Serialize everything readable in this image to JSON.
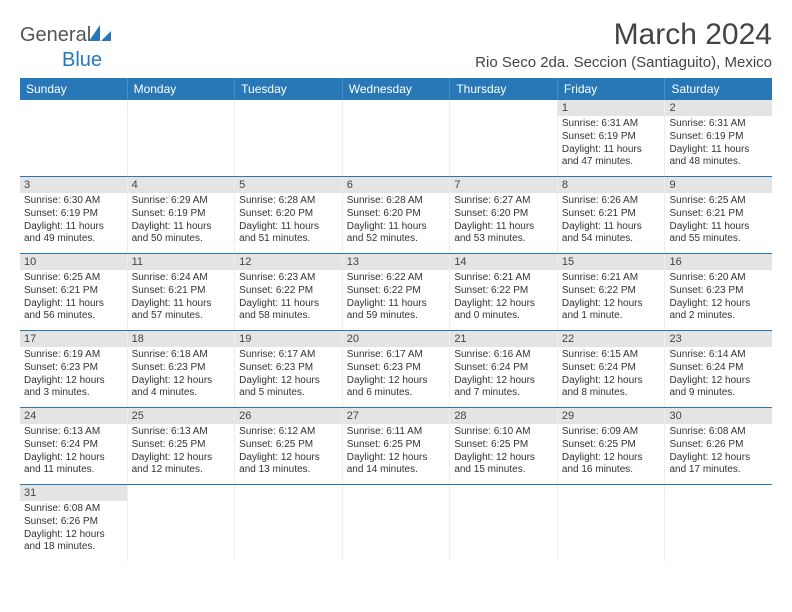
{
  "logo": {
    "textA": "General",
    "textB": "Blue"
  },
  "title": "March 2024",
  "location": "Rio Seco 2da. Seccion (Santiaguito), Mexico",
  "colors": {
    "header_bg": "#2878b8",
    "daynum_bg": "#e4e4e4"
  },
  "dayHeaders": [
    "Sunday",
    "Monday",
    "Tuesday",
    "Wednesday",
    "Thursday",
    "Friday",
    "Saturday"
  ],
  "weeks": [
    [
      {
        "n": "",
        "empty": true
      },
      {
        "n": "",
        "empty": true
      },
      {
        "n": "",
        "empty": true
      },
      {
        "n": "",
        "empty": true
      },
      {
        "n": "",
        "empty": true
      },
      {
        "n": "1",
        "sr": "Sunrise: 6:31 AM",
        "ss": "Sunset: 6:19 PM",
        "dl1": "Daylight: 11 hours",
        "dl2": "and 47 minutes."
      },
      {
        "n": "2",
        "sr": "Sunrise: 6:31 AM",
        "ss": "Sunset: 6:19 PM",
        "dl1": "Daylight: 11 hours",
        "dl2": "and 48 minutes."
      }
    ],
    [
      {
        "n": "3",
        "sr": "Sunrise: 6:30 AM",
        "ss": "Sunset: 6:19 PM",
        "dl1": "Daylight: 11 hours",
        "dl2": "and 49 minutes."
      },
      {
        "n": "4",
        "sr": "Sunrise: 6:29 AM",
        "ss": "Sunset: 6:19 PM",
        "dl1": "Daylight: 11 hours",
        "dl2": "and 50 minutes."
      },
      {
        "n": "5",
        "sr": "Sunrise: 6:28 AM",
        "ss": "Sunset: 6:20 PM",
        "dl1": "Daylight: 11 hours",
        "dl2": "and 51 minutes."
      },
      {
        "n": "6",
        "sr": "Sunrise: 6:28 AM",
        "ss": "Sunset: 6:20 PM",
        "dl1": "Daylight: 11 hours",
        "dl2": "and 52 minutes."
      },
      {
        "n": "7",
        "sr": "Sunrise: 6:27 AM",
        "ss": "Sunset: 6:20 PM",
        "dl1": "Daylight: 11 hours",
        "dl2": "and 53 minutes."
      },
      {
        "n": "8",
        "sr": "Sunrise: 6:26 AM",
        "ss": "Sunset: 6:21 PM",
        "dl1": "Daylight: 11 hours",
        "dl2": "and 54 minutes."
      },
      {
        "n": "9",
        "sr": "Sunrise: 6:25 AM",
        "ss": "Sunset: 6:21 PM",
        "dl1": "Daylight: 11 hours",
        "dl2": "and 55 minutes."
      }
    ],
    [
      {
        "n": "10",
        "sr": "Sunrise: 6:25 AM",
        "ss": "Sunset: 6:21 PM",
        "dl1": "Daylight: 11 hours",
        "dl2": "and 56 minutes."
      },
      {
        "n": "11",
        "sr": "Sunrise: 6:24 AM",
        "ss": "Sunset: 6:21 PM",
        "dl1": "Daylight: 11 hours",
        "dl2": "and 57 minutes."
      },
      {
        "n": "12",
        "sr": "Sunrise: 6:23 AM",
        "ss": "Sunset: 6:22 PM",
        "dl1": "Daylight: 11 hours",
        "dl2": "and 58 minutes."
      },
      {
        "n": "13",
        "sr": "Sunrise: 6:22 AM",
        "ss": "Sunset: 6:22 PM",
        "dl1": "Daylight: 11 hours",
        "dl2": "and 59 minutes."
      },
      {
        "n": "14",
        "sr": "Sunrise: 6:21 AM",
        "ss": "Sunset: 6:22 PM",
        "dl1": "Daylight: 12 hours",
        "dl2": "and 0 minutes."
      },
      {
        "n": "15",
        "sr": "Sunrise: 6:21 AM",
        "ss": "Sunset: 6:22 PM",
        "dl1": "Daylight: 12 hours",
        "dl2": "and 1 minute."
      },
      {
        "n": "16",
        "sr": "Sunrise: 6:20 AM",
        "ss": "Sunset: 6:23 PM",
        "dl1": "Daylight: 12 hours",
        "dl2": "and 2 minutes."
      }
    ],
    [
      {
        "n": "17",
        "sr": "Sunrise: 6:19 AM",
        "ss": "Sunset: 6:23 PM",
        "dl1": "Daylight: 12 hours",
        "dl2": "and 3 minutes."
      },
      {
        "n": "18",
        "sr": "Sunrise: 6:18 AM",
        "ss": "Sunset: 6:23 PM",
        "dl1": "Daylight: 12 hours",
        "dl2": "and 4 minutes."
      },
      {
        "n": "19",
        "sr": "Sunrise: 6:17 AM",
        "ss": "Sunset: 6:23 PM",
        "dl1": "Daylight: 12 hours",
        "dl2": "and 5 minutes."
      },
      {
        "n": "20",
        "sr": "Sunrise: 6:17 AM",
        "ss": "Sunset: 6:23 PM",
        "dl1": "Daylight: 12 hours",
        "dl2": "and 6 minutes."
      },
      {
        "n": "21",
        "sr": "Sunrise: 6:16 AM",
        "ss": "Sunset: 6:24 PM",
        "dl1": "Daylight: 12 hours",
        "dl2": "and 7 minutes."
      },
      {
        "n": "22",
        "sr": "Sunrise: 6:15 AM",
        "ss": "Sunset: 6:24 PM",
        "dl1": "Daylight: 12 hours",
        "dl2": "and 8 minutes."
      },
      {
        "n": "23",
        "sr": "Sunrise: 6:14 AM",
        "ss": "Sunset: 6:24 PM",
        "dl1": "Daylight: 12 hours",
        "dl2": "and 9 minutes."
      }
    ],
    [
      {
        "n": "24",
        "sr": "Sunrise: 6:13 AM",
        "ss": "Sunset: 6:24 PM",
        "dl1": "Daylight: 12 hours",
        "dl2": "and 11 minutes."
      },
      {
        "n": "25",
        "sr": "Sunrise: 6:13 AM",
        "ss": "Sunset: 6:25 PM",
        "dl1": "Daylight: 12 hours",
        "dl2": "and 12 minutes."
      },
      {
        "n": "26",
        "sr": "Sunrise: 6:12 AM",
        "ss": "Sunset: 6:25 PM",
        "dl1": "Daylight: 12 hours",
        "dl2": "and 13 minutes."
      },
      {
        "n": "27",
        "sr": "Sunrise: 6:11 AM",
        "ss": "Sunset: 6:25 PM",
        "dl1": "Daylight: 12 hours",
        "dl2": "and 14 minutes."
      },
      {
        "n": "28",
        "sr": "Sunrise: 6:10 AM",
        "ss": "Sunset: 6:25 PM",
        "dl1": "Daylight: 12 hours",
        "dl2": "and 15 minutes."
      },
      {
        "n": "29",
        "sr": "Sunrise: 6:09 AM",
        "ss": "Sunset: 6:25 PM",
        "dl1": "Daylight: 12 hours",
        "dl2": "and 16 minutes."
      },
      {
        "n": "30",
        "sr": "Sunrise: 6:08 AM",
        "ss": "Sunset: 6:26 PM",
        "dl1": "Daylight: 12 hours",
        "dl2": "and 17 minutes."
      }
    ],
    [
      {
        "n": "31",
        "sr": "Sunrise: 6:08 AM",
        "ss": "Sunset: 6:26 PM",
        "dl1": "Daylight: 12 hours",
        "dl2": "and 18 minutes."
      },
      {
        "n": "",
        "empty": true
      },
      {
        "n": "",
        "empty": true
      },
      {
        "n": "",
        "empty": true
      },
      {
        "n": "",
        "empty": true
      },
      {
        "n": "",
        "empty": true
      },
      {
        "n": "",
        "empty": true
      }
    ]
  ]
}
